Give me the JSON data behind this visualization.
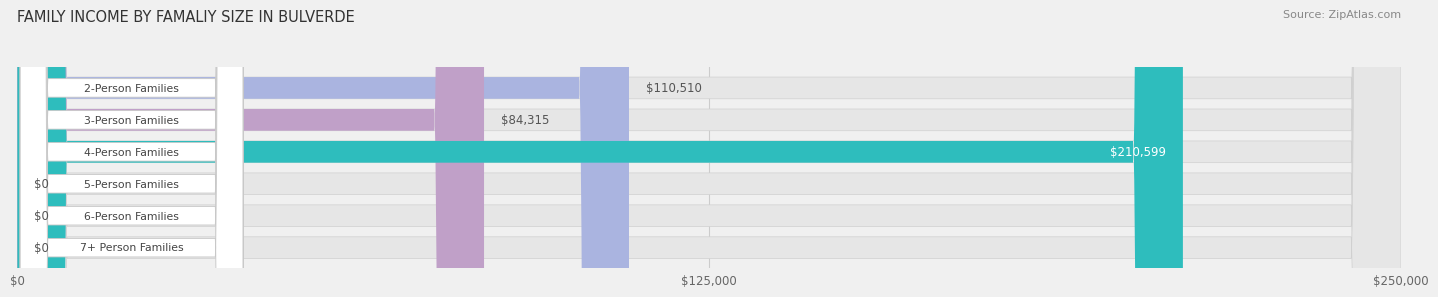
{
  "title": "FAMILY INCOME BY FAMALIY SIZE IN BULVERDE",
  "source": "Source: ZipAtlas.com",
  "categories": [
    "2-Person Families",
    "3-Person Families",
    "4-Person Families",
    "5-Person Families",
    "6-Person Families",
    "7+ Person Families"
  ],
  "values": [
    110510,
    84315,
    210599,
    0,
    0,
    0
  ],
  "bar_colors": [
    "#aab4e0",
    "#c0a0c8",
    "#2ebdbd",
    "#a8a8d8",
    "#f09898",
    "#f0c898"
  ],
  "value_labels": [
    "$110,510",
    "$84,315",
    "$210,599",
    "$0",
    "$0",
    "$0"
  ],
  "value_label_inside": [
    false,
    false,
    true,
    false,
    false,
    false
  ],
  "xlim": [
    0,
    250000
  ],
  "xticks": [
    0,
    125000,
    250000
  ],
  "xticklabels": [
    "$0",
    "$125,000",
    "$250,000"
  ],
  "background_color": "#f0f0f0",
  "bar_bg_color": "#e6e6e6",
  "figsize": [
    14.06,
    3.05
  ],
  "dpi": 100
}
